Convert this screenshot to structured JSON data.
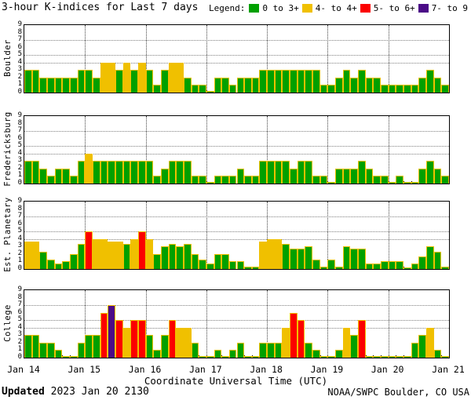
{
  "title": "3-hour K-indices for Last 7 days",
  "legend": {
    "label": "Legend:",
    "items": [
      {
        "label": "0 to 3+",
        "color": "#00a000"
      },
      {
        "label": "4- to 4+",
        "color": "#f0c000"
      },
      {
        "label": "5- to 6+",
        "color": "#fb0000"
      },
      {
        "label": "7- to 9",
        "color": "#4b0b87"
      }
    ]
  },
  "footer": {
    "updated_label": "Updated",
    "updated_value": "2023 Jan 20 2130",
    "credit": "NOAA/SWPC Boulder, CO USA"
  },
  "chart_data": {
    "type": "bar",
    "title": "3-hour K-indices for Last 7 days",
    "xlabel": "Coordinate Universal Time (UTC)",
    "ylim": [
      0,
      9
    ],
    "y_ticks": [
      0,
      1,
      2,
      3,
      4,
      5,
      6,
      7,
      8,
      9
    ],
    "dotted_levels": [
      4,
      5,
      7
    ],
    "x_tick_labels": [
      "Jan 14",
      "Jan 15",
      "Jan 16",
      "Jan 17",
      "Jan 18",
      "Jan 19",
      "Jan 20",
      "Jan 21"
    ],
    "days": 7,
    "bars_per_day": 8,
    "bar_outline_color": "#f0c000",
    "color_rules": [
      {
        "max": 3.45,
        "color": "#00a000"
      },
      {
        "max": 4.45,
        "color": "#f0c000"
      },
      {
        "max": 6.55,
        "color": "#fb0000"
      },
      {
        "max": 9.0,
        "color": "#4b0b87"
      }
    ],
    "series": [
      {
        "name": "Boulder",
        "values": [
          3,
          3,
          2,
          2,
          2,
          2,
          2,
          3,
          3,
          2,
          4,
          4,
          3,
          4,
          3,
          4,
          3,
          1,
          3,
          4,
          4,
          2,
          1,
          1,
          0,
          2,
          2,
          1,
          2,
          2,
          2,
          3,
          3,
          3,
          3,
          3,
          3,
          3,
          3,
          1,
          1,
          2,
          3,
          2,
          3,
          2,
          2,
          1,
          1,
          1,
          1,
          1,
          2,
          3,
          2,
          1
        ]
      },
      {
        "name": "Fredericksburg",
        "values": [
          3,
          3,
          2,
          1,
          2,
          2,
          1,
          3,
          4,
          3,
          3,
          3,
          3,
          3,
          3,
          3,
          3,
          1,
          2,
          3,
          3,
          3,
          1,
          1,
          0,
          1,
          1,
          1,
          2,
          1,
          1,
          3,
          3,
          3,
          3,
          2,
          3,
          3,
          1,
          1,
          0,
          2,
          2,
          2,
          3,
          2,
          1,
          1,
          0,
          1,
          0,
          0,
          2,
          3,
          2,
          1
        ]
      },
      {
        "name": "Est. Planetary",
        "values": [
          3.7,
          3.7,
          2.3,
          1.3,
          0.7,
          1,
          2,
          3.3,
          5,
          4,
          4,
          3.7,
          3.7,
          3.3,
          4,
          5,
          4,
          2,
          3,
          3.3,
          3,
          3.3,
          2,
          1.3,
          0.7,
          2,
          2,
          1,
          1,
          0.3,
          0.3,
          3.7,
          4,
          4,
          3.3,
          2.7,
          2.7,
          3,
          1.3,
          0.3,
          1.3,
          0.3,
          3,
          2.7,
          2.7,
          0.7,
          0.7,
          1,
          1,
          1,
          0.1,
          0.7,
          1.7,
          3,
          2.3,
          0.3
        ]
      },
      {
        "name": "College",
        "values": [
          3,
          3,
          2,
          2,
          1,
          0,
          0,
          2,
          3,
          3,
          6,
          7,
          5,
          4,
          5,
          5,
          3,
          1,
          3,
          5,
          4,
          4,
          2,
          0,
          0,
          1,
          0,
          1,
          2,
          0,
          0,
          2,
          2,
          2,
          4,
          6,
          5,
          2,
          1,
          0,
          0,
          1,
          4,
          3,
          5,
          0,
          0,
          0,
          0,
          0,
          0,
          2,
          3,
          4,
          1,
          0
        ]
      }
    ]
  }
}
